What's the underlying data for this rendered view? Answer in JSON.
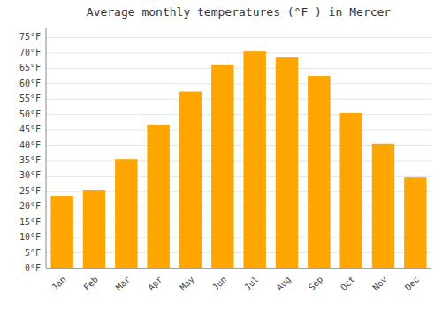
{
  "chart_data": {
    "type": "bar",
    "title": "Average monthly temperatures (°F ) in Mercer",
    "categories": [
      "Jan",
      "Feb",
      "Mar",
      "Apr",
      "May",
      "Jun",
      "Jul",
      "Aug",
      "Sep",
      "Oct",
      "Nov",
      "Dec"
    ],
    "values": [
      23.5,
      25.5,
      35.5,
      46.5,
      57.5,
      66,
      70.5,
      68.5,
      62.5,
      50.5,
      40.5,
      29.5
    ],
    "color": "#FFA500",
    "ylim": [
      0,
      78
    ],
    "yticks": [
      {
        "value": 0,
        "label": "0°F"
      },
      {
        "value": 5,
        "label": "5°F"
      },
      {
        "value": 10,
        "label": "10°F"
      },
      {
        "value": 15,
        "label": "15°F"
      },
      {
        "value": 20,
        "label": "20°F"
      },
      {
        "value": 25,
        "label": "25°F"
      },
      {
        "value": 30,
        "label": "30°F"
      },
      {
        "value": 35,
        "label": "35°F"
      },
      {
        "value": 40,
        "label": "40°F"
      },
      {
        "value": 45,
        "label": "45°F"
      },
      {
        "value": 50,
        "label": "50°F"
      },
      {
        "value": 55,
        "label": "55°F"
      },
      {
        "value": 60,
        "label": "60°F"
      },
      {
        "value": 65,
        "label": "65°F"
      },
      {
        "value": 70,
        "label": "70°F"
      },
      {
        "value": 75,
        "label": "75°F"
      }
    ],
    "grid": true
  }
}
